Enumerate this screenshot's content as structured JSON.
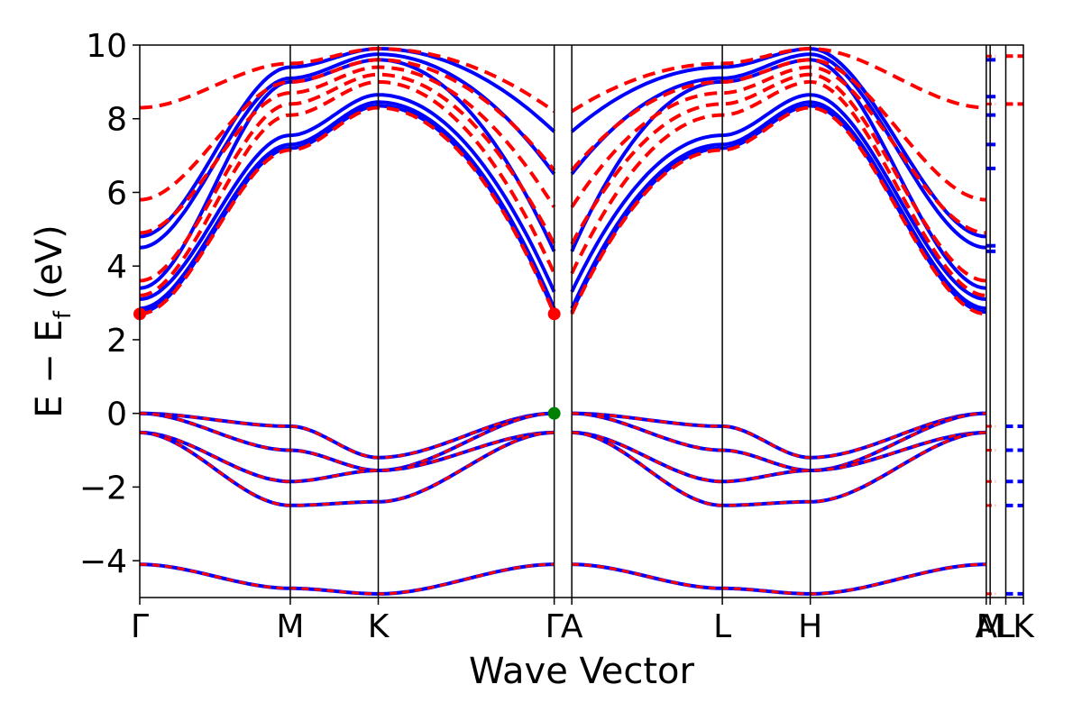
{
  "chart_data": {
    "type": "line",
    "xlabel": "Wave Vector",
    "ylabel": "E − E",
    "ylabel_sub": "f",
    "ylabel_unit": " (eV)",
    "ylim": [
      -5,
      10
    ],
    "yticks": [
      {
        "value": 10,
        "label": "10"
      },
      {
        "value": 8,
        "label": "8"
      },
      {
        "value": 6,
        "label": "6"
      },
      {
        "value": 4,
        "label": "4"
      },
      {
        "value": 2,
        "label": "2"
      },
      {
        "value": 0,
        "label": "0"
      },
      {
        "value": -2,
        "label": "−2"
      },
      {
        "value": -4,
        "label": "−4"
      }
    ],
    "xlim": [
      0,
      4.5
    ],
    "kpoints": [
      {
        "label": "Γ",
        "x": 0.0
      },
      {
        "label": "M",
        "x": 0.77
      },
      {
        "label": "K",
        "x": 1.22
      },
      {
        "label": "Γ",
        "x": 2.12
      },
      {
        "label": "A",
        "x": 2.21
      },
      {
        "label": "L",
        "x": 2.98
      },
      {
        "label": "H",
        "x": 3.43
      },
      {
        "label": "A",
        "x": 4.33
      },
      {
        "label": "M",
        "x": 4.35
      },
      {
        "label": "L",
        "x": 4.43
      },
      {
        "label": "K",
        "x": 4.52
      }
    ],
    "series_colors": {
      "spin_up": "#0000ff",
      "spin_down": "#ff0000"
    },
    "markers": [
      {
        "x": 0.0,
        "y": 2.7,
        "color": "#ff0000"
      },
      {
        "x": 2.12,
        "y": 2.7,
        "color": "#ff0000"
      },
      {
        "x": 2.12,
        "y": 0.0,
        "color": "#008000"
      }
    ],
    "valence_bands": [
      [
        0,
        -0.35,
        -1.2,
        0
      ],
      [
        0,
        -1.0,
        -1.55,
        0
      ],
      [
        -0.52,
        -1.85,
        -1.55,
        -0.52
      ],
      [
        -0.52,
        -2.5,
        -2.4,
        -0.52
      ],
      [
        -4.1,
        -4.75,
        -4.9,
        -4.1
      ]
    ],
    "conduction_up": [
      [
        2.75,
        7.2,
        8.35,
        2.75
      ],
      [
        2.85,
        7.3,
        8.45,
        2.85
      ],
      [
        3.1,
        7.55,
        8.65,
        3.3
      ],
      [
        3.4,
        9.0,
        9.6,
        4.4
      ],
      [
        4.5,
        9.1,
        9.75,
        6.5
      ],
      [
        4.8,
        9.4,
        9.9,
        7.65
      ]
    ],
    "conduction_down": [
      [
        2.7,
        7.15,
        8.3,
        2.7
      ],
      [
        3.2,
        8.1,
        9.0,
        3.8
      ],
      [
        3.6,
        8.4,
        9.2,
        4.6
      ],
      [
        4.9,
        8.7,
        9.4,
        5.6
      ],
      [
        5.8,
        9.0,
        9.6,
        6.6
      ],
      [
        8.3,
        9.5,
        9.9,
        8.2
      ]
    ],
    "tail_up": [
      4.4,
      4.55,
      6.65,
      7.3,
      8.1,
      8.6,
      9.6
    ],
    "tail_down": [
      -0.35,
      -1.0,
      -1.85,
      -2.5,
      -4.9,
      8.4,
      9.7
    ],
    "points_visible": true,
    "grid": false,
    "legend": "none"
  }
}
